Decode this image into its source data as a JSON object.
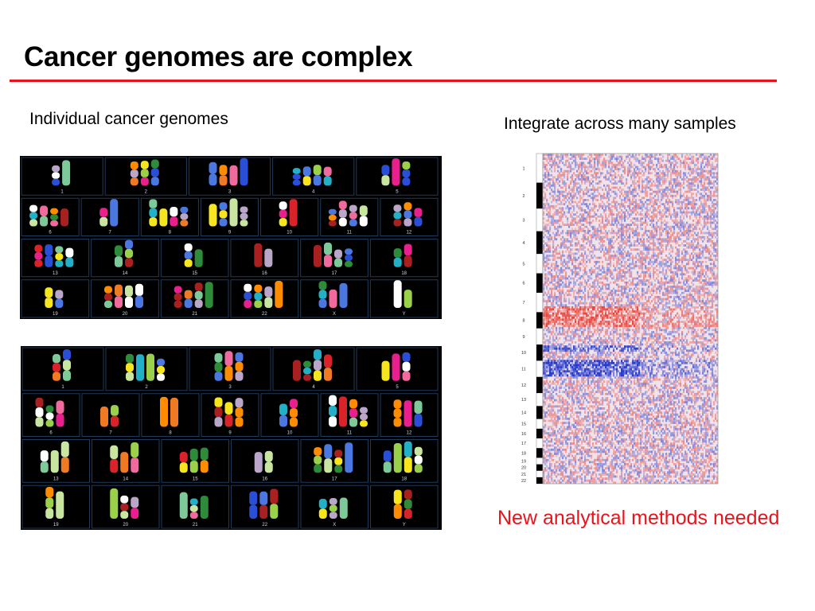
{
  "slide": {
    "title": "Cancer genomes are complex",
    "left_caption": "Individual cancer genomes",
    "right_caption": "Integrate across many samples",
    "footer_note": "New analytical methods needed"
  },
  "colors": {
    "accent_red": "#e8141c"
  },
  "karyotypes": [
    {
      "rows": [
        {
          "labels": [
            "1",
            "2",
            "3",
            "4",
            "5"
          ]
        },
        {
          "labels": [
            "6",
            "7",
            "8",
            "9",
            "10",
            "11",
            "12"
          ]
        },
        {
          "labels": [
            "13",
            "14",
            "15",
            "16",
            "17",
            "18"
          ]
        },
        {
          "labels": [
            "19",
            "20",
            "21",
            "22",
            "X",
            "Y"
          ]
        }
      ]
    },
    {
      "rows": [
        {
          "labels": [
            "1",
            "2",
            "3",
            "4",
            "5"
          ]
        },
        {
          "labels": [
            "6",
            "7",
            "8",
            "9",
            "10",
            "11",
            "12"
          ]
        },
        {
          "labels": [
            "13",
            "14",
            "15",
            "16",
            "17",
            "18"
          ]
        },
        {
          "labels": [
            "19",
            "20",
            "21",
            "22",
            "X",
            "Y"
          ]
        }
      ]
    }
  ],
  "heatmap": {
    "chromosome_labels": [
      "1",
      "2",
      "3",
      "4",
      "5",
      "6",
      "7",
      "8",
      "9",
      "10",
      "11",
      "12",
      "13",
      "14",
      "15",
      "16",
      "17",
      "18",
      "19",
      "20",
      "21",
      "22"
    ]
  }
}
